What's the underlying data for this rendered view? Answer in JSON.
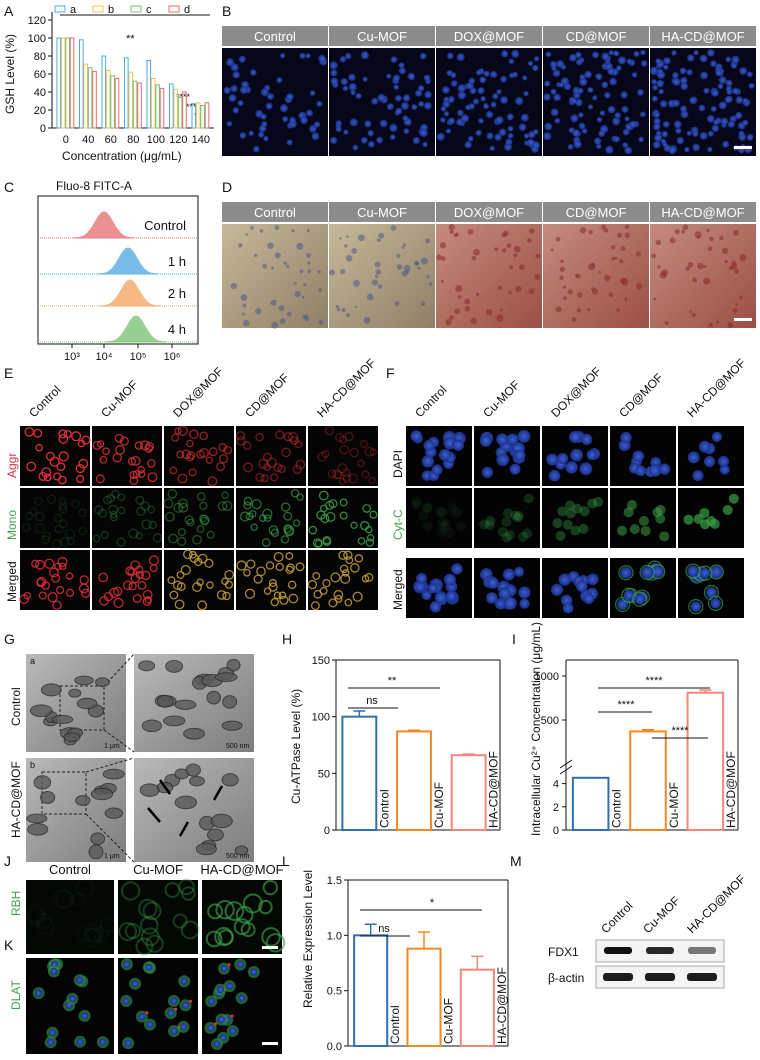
{
  "panels": {
    "A": "A",
    "B": "B",
    "C": "C",
    "D": "D",
    "E": "E",
    "F": "F",
    "G": "G",
    "H": "H",
    "I": "I",
    "J": "J",
    "K": "K",
    "L": "L",
    "M": "M"
  },
  "groups": [
    "Control",
    "Cu-MOF",
    "DOX@MOF",
    "CD@MOF",
    "HA-CD@MOF"
  ],
  "panelA": {
    "ylabel": "GSH Level (%)",
    "xlabel": "Concentration (μg/mL)",
    "legend": [
      "a",
      "b",
      "c",
      "d"
    ],
    "sig_top": "**",
    "sig_right": [
      "****",
      "***",
      "*"
    ]
  },
  "panelC": {
    "title": "Fluo-8 FITC-A",
    "rows": [
      "Control",
      "1 h",
      "2 h",
      "4 h"
    ],
    "xticks": [
      "10³",
      "10⁴",
      "10⁵",
      "10⁶"
    ],
    "colors": [
      "#e56b6f",
      "#4aa8e0",
      "#f3a25a",
      "#74c06b"
    ]
  },
  "panelE": {
    "rows": [
      "Aggr",
      "Mono",
      "Merged"
    ]
  },
  "panelF": {
    "rows": [
      "DAPI",
      "Cyt-C",
      "Merged"
    ]
  },
  "panelG": {
    "rows": [
      "Control",
      "HA-CD@MOF"
    ],
    "sub": [
      "a",
      "b"
    ],
    "scale1": "1 μm",
    "scale2": "500 nm"
  },
  "panelJ": {
    "cols": [
      "Control",
      "Cu-MOF",
      "HA-CD@MOF"
    ],
    "row": "RBH"
  },
  "panelK": {
    "row": "DLAT"
  },
  "panelM": {
    "cols": [
      "Control",
      "Cu-MOF",
      "HA-CD@MOF"
    ],
    "rows": [
      "FDX1",
      "β-actin"
    ]
  },
  "chart_data": [
    {
      "id": "A",
      "type": "bar",
      "categories": [
        "0",
        "40",
        "60",
        "80",
        "100",
        "120",
        "140"
      ],
      "series": [
        {
          "name": "a",
          "values": [
            100,
            98,
            80,
            78,
            75,
            49,
            27
          ]
        },
        {
          "name": "b",
          "values": [
            100,
            71,
            64,
            62,
            55,
            43,
            28
          ]
        },
        {
          "name": "c",
          "values": [
            100,
            67,
            58,
            52,
            48,
            34,
            25
          ]
        },
        {
          "name": "d",
          "values": [
            100,
            63,
            55,
            50,
            44,
            40,
            28
          ]
        }
      ],
      "ylim": [
        0,
        120
      ],
      "yticks": [
        "0",
        "20",
        "40",
        "60",
        "80",
        "100",
        "120"
      ],
      "colors": [
        "#4aa8e0",
        "#f3c15a",
        "#74c06b",
        "#e56b6f"
      ]
    },
    {
      "id": "H",
      "type": "bar",
      "ylabel": "Cu-ATPase Level (%)",
      "categories": [
        "Control",
        "Cu-MOF",
        "HA-CD@MOF"
      ],
      "values": [
        100,
        87,
        66
      ],
      "errors": [
        5,
        1,
        1
      ],
      "ylim": [
        0,
        150
      ],
      "yticks": [
        "0",
        "50",
        "100",
        "150"
      ],
      "colors": [
        "#2f6fad",
        "#f08a24",
        "#f0877a"
      ],
      "sig": [
        "ns",
        "**"
      ]
    },
    {
      "id": "I",
      "type": "bar",
      "ylabel": "Intracellular Cu²⁺ Concentration (μg/mL)",
      "categories": [
        "Control",
        "Cu-MOF",
        "HA-CD@MOF"
      ],
      "values": [
        4.5,
        370,
        810
      ],
      "errors": [
        0.1,
        20,
        30
      ],
      "yticks_low": [
        "0",
        "2",
        "4"
      ],
      "yticks_high": [
        "500",
        "1000"
      ],
      "colors": [
        "#2f6fad",
        "#f08a24",
        "#f0877a"
      ],
      "sig": [
        "****",
        "****",
        "****"
      ]
    },
    {
      "id": "L",
      "type": "bar",
      "ylabel": "Relative Expression Level",
      "categories": [
        "Control",
        "Cu-MOF",
        "HA-CD@MOF"
      ],
      "values": [
        1.0,
        0.88,
        0.69
      ],
      "errors": [
        0.1,
        0.15,
        0.12
      ],
      "ylim": [
        0,
        1.5
      ],
      "yticks": [
        "0.0",
        "0.5",
        "1.0",
        "1.5"
      ],
      "colors": [
        "#2f6fad",
        "#f08a24",
        "#f0877a"
      ],
      "sig": [
        "ns",
        "*"
      ]
    }
  ]
}
